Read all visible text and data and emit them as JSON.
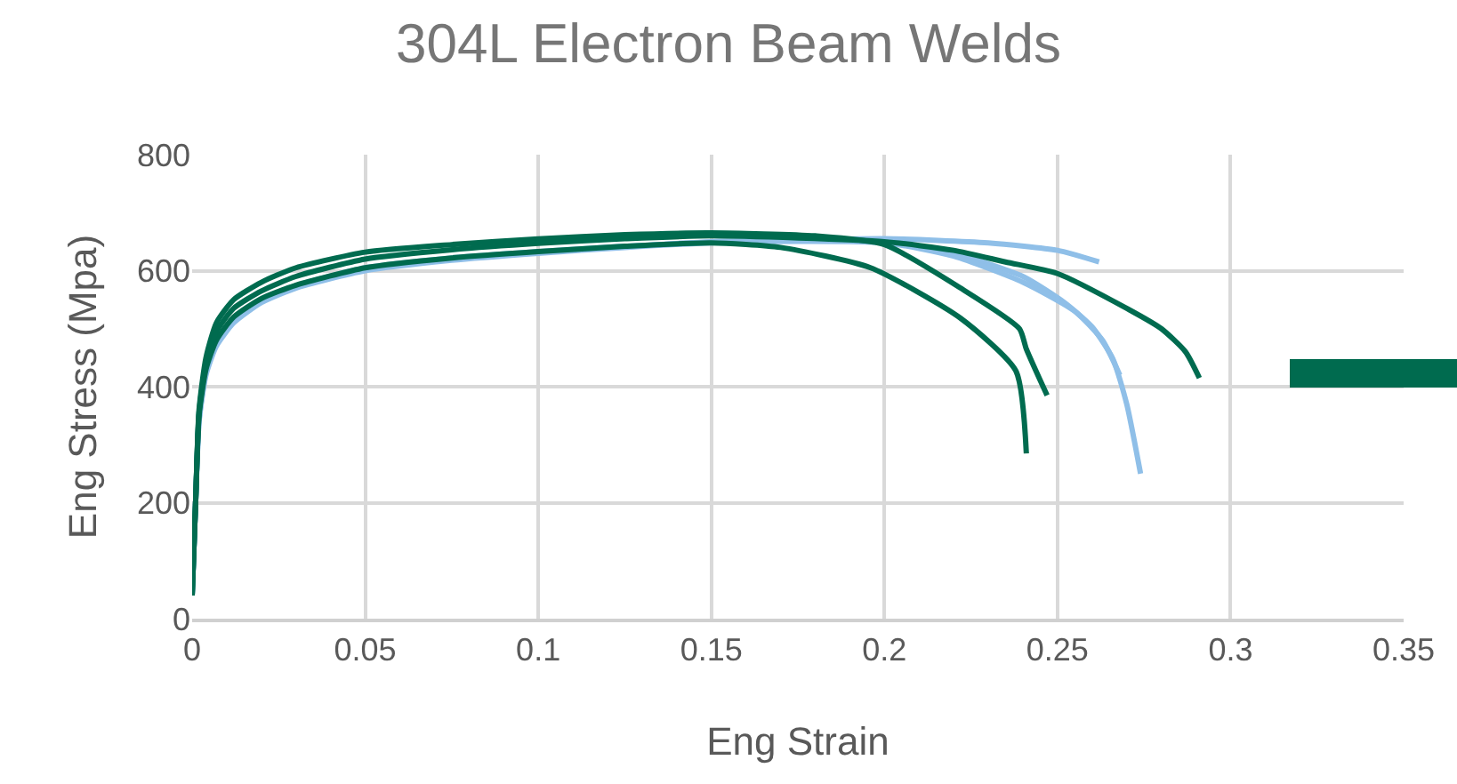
{
  "chart_data": {
    "type": "line",
    "title": "304L Electron Beam Welds",
    "xlabel": "Eng Strain",
    "ylabel": "Eng Stress (Mpa)",
    "xlim": [
      0,
      0.35
    ],
    "xticks": [
      0,
      0.05,
      0.1,
      0.15,
      0.2,
      0.25,
      0.3,
      0.35
    ],
    "ylim": [
      0,
      800
    ],
    "yticks": [
      0,
      200,
      400,
      600,
      800
    ],
    "grid": true,
    "marker": "none",
    "line_style": "solid",
    "series": [
      {
        "color": "#8fbfe8",
        "x": [
          0,
          0.001,
          0.002,
          0.004,
          0.007,
          0.012,
          0.02,
          0.03,
          0.05,
          0.075,
          0.1,
          0.125,
          0.15,
          0.2,
          0.23,
          0.25,
          0.262
        ],
        "values": [
          40,
          200,
          340,
          420,
          470,
          510,
          545,
          570,
          600,
          618,
          630,
          640,
          648,
          655,
          648,
          635,
          615
        ]
      },
      {
        "color": "#8fbfe8",
        "x": [
          0,
          0.001,
          0.002,
          0.004,
          0.007,
          0.012,
          0.02,
          0.03,
          0.05,
          0.075,
          0.1,
          0.125,
          0.15,
          0.2,
          0.22,
          0.24,
          0.252,
          0.26,
          0.266,
          0.27,
          0.274
        ],
        "values": [
          40,
          200,
          340,
          425,
          475,
          515,
          548,
          572,
          603,
          620,
          632,
          641,
          650,
          650,
          630,
          590,
          545,
          503,
          448,
          370,
          250
        ]
      },
      {
        "color": "#8fbfe8",
        "x": [
          0,
          0.001,
          0.002,
          0.004,
          0.007,
          0.012,
          0.02,
          0.03,
          0.05,
          0.075,
          0.1,
          0.125,
          0.15,
          0.2,
          0.22,
          0.24,
          0.255,
          0.263,
          0.268
        ],
        "values": [
          40,
          200,
          345,
          428,
          478,
          518,
          550,
          574,
          605,
          622,
          633,
          642,
          649,
          648,
          625,
          580,
          530,
          480,
          420
        ]
      },
      {
        "color": "#006b4f",
        "x": [
          0,
          0.001,
          0.002,
          0.004,
          0.007,
          0.012,
          0.02,
          0.03,
          0.05,
          0.075,
          0.1,
          0.125,
          0.15,
          0.17,
          0.196,
          0.222,
          0.238,
          0.241
        ],
        "values": [
          40,
          200,
          350,
          430,
          480,
          520,
          552,
          575,
          605,
          622,
          633,
          642,
          648,
          640,
          605,
          518,
          427,
          285
        ]
      },
      {
        "color": "#006b4f",
        "x": [
          0,
          0.001,
          0.002,
          0.004,
          0.007,
          0.012,
          0.02,
          0.03,
          0.05,
          0.075,
          0.1,
          0.125,
          0.15,
          0.18,
          0.2,
          0.222,
          0.239,
          0.241,
          0.247
        ],
        "values": [
          40,
          200,
          360,
          450,
          510,
          550,
          580,
          605,
          632,
          645,
          655,
          662,
          665,
          660,
          645,
          570,
          500,
          465,
          385
        ]
      },
      {
        "color": "#006b4f",
        "x": [
          0,
          0.001,
          0.002,
          0.004,
          0.007,
          0.012,
          0.02,
          0.03,
          0.05,
          0.075,
          0.1,
          0.125,
          0.15,
          0.2,
          0.22,
          0.235,
          0.25,
          0.27,
          0.28,
          0.287,
          0.291
        ],
        "values": [
          40,
          200,
          355,
          440,
          495,
          535,
          565,
          590,
          620,
          636,
          647,
          655,
          660,
          650,
          635,
          615,
          595,
          535,
          500,
          460,
          415
        ]
      }
    ]
  }
}
